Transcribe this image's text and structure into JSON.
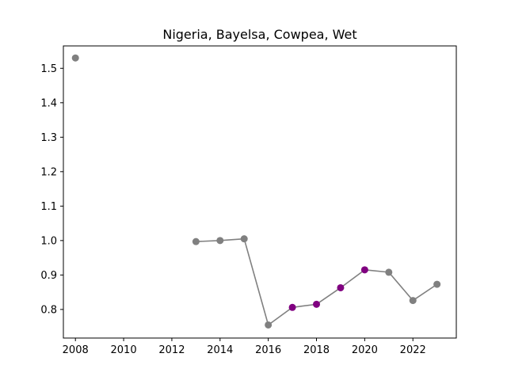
{
  "chart_data": {
    "type": "line",
    "title": "Nigeria, Bayelsa, Cowpea, Wet",
    "xlabel": "",
    "ylabel": "",
    "xlim": [
      2007.5,
      2023.8
    ],
    "ylim": [
      0.717,
      1.565
    ],
    "xticks": [
      2008,
      2010,
      2012,
      2014,
      2016,
      2018,
      2020,
      2022
    ],
    "yticks": [
      0.8,
      0.9,
      1.0,
      1.1,
      1.2,
      1.3,
      1.4,
      1.5
    ],
    "grid": false,
    "line_color": "#808080",
    "marker_color_default": "#808080",
    "marker_color_highlight": "#800080",
    "points": [
      {
        "x": 2008,
        "y": 1.53,
        "highlight": false
      },
      {
        "x": 2013,
        "y": 0.997,
        "highlight": false
      },
      {
        "x": 2014,
        "y": 1.0,
        "highlight": false
      },
      {
        "x": 2015,
        "y": 1.005,
        "highlight": false
      },
      {
        "x": 2016,
        "y": 0.755,
        "highlight": false
      },
      {
        "x": 2017,
        "y": 0.806,
        "highlight": true
      },
      {
        "x": 2018,
        "y": 0.815,
        "highlight": true
      },
      {
        "x": 2019,
        "y": 0.863,
        "highlight": true
      },
      {
        "x": 2020,
        "y": 0.915,
        "highlight": true
      },
      {
        "x": 2021,
        "y": 0.908,
        "highlight": false
      },
      {
        "x": 2022,
        "y": 0.826,
        "highlight": false
      },
      {
        "x": 2023,
        "y": 0.873,
        "highlight": false
      }
    ]
  }
}
